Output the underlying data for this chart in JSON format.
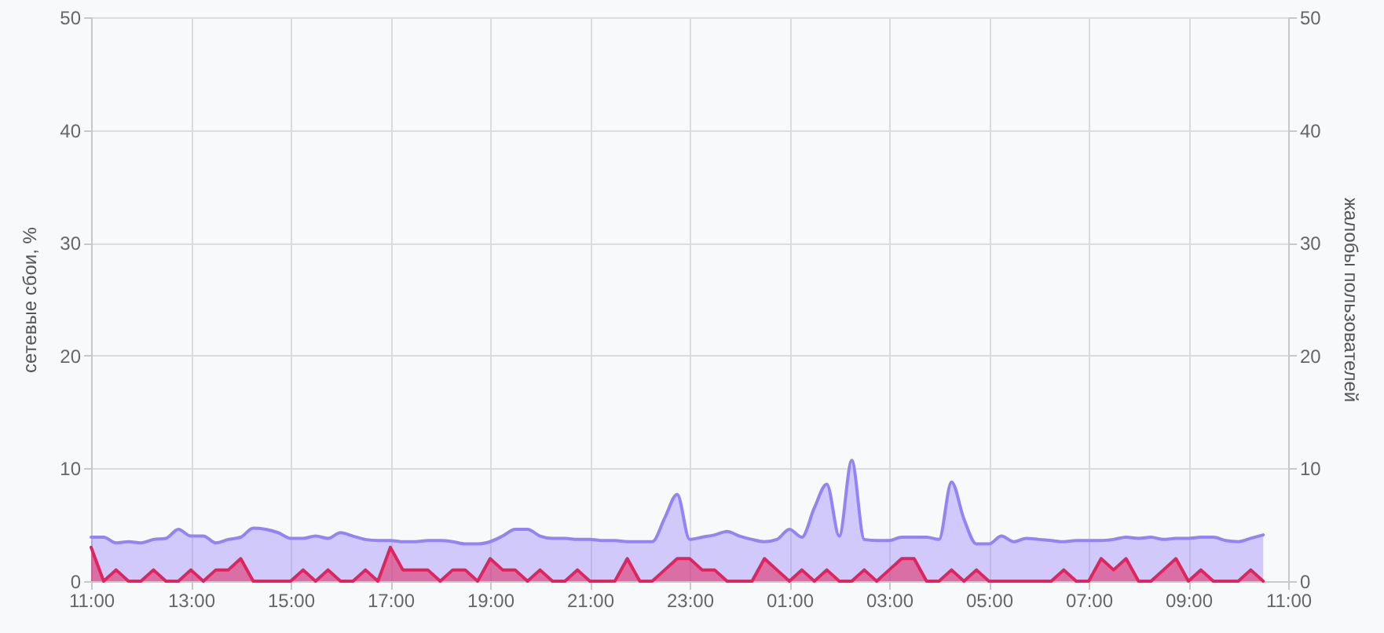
{
  "chart_data": {
    "type": "area",
    "ylabel": "сетевые сбои, %",
    "y2label": "жалобы пользователей",
    "categories": [
      "11:00",
      null,
      null,
      null,
      null,
      null,
      null,
      null,
      "13:00",
      null,
      null,
      null,
      null,
      null,
      null,
      null,
      "15:00",
      null,
      null,
      null,
      null,
      null,
      null,
      null,
      "17:00",
      null,
      null,
      null,
      null,
      null,
      null,
      null,
      "19:00",
      null,
      null,
      null,
      null,
      null,
      null,
      null,
      "21:00",
      null,
      null,
      null,
      null,
      null,
      null,
      null,
      "23:00",
      null,
      null,
      null,
      null,
      null,
      null,
      null,
      "01:00",
      null,
      null,
      null,
      null,
      null,
      null,
      null,
      "03:00",
      null,
      null,
      null,
      null,
      null,
      null,
      null,
      "05:00",
      null,
      null,
      null,
      null,
      null,
      null,
      null,
      "07:00",
      null,
      null,
      null,
      null,
      null,
      null,
      null,
      "09:00",
      null,
      null,
      null,
      null,
      null,
      null,
      null,
      "11:00"
    ],
    "ylim": [
      0,
      50
    ],
    "yticks": [
      0,
      10,
      20,
      30,
      40,
      50
    ],
    "y2lim": [
      0,
      50
    ],
    "y2ticks": [
      0,
      10,
      20,
      30,
      40,
      50
    ],
    "grid": true,
    "series": [
      {
        "color": "#9482f7",
        "values": [
          3.9,
          3.9,
          3.4,
          3.5,
          3.4,
          3.7,
          3.8,
          4.6,
          4.0,
          4.0,
          3.4,
          3.7,
          3.9,
          4.7,
          4.6,
          4.3,
          3.8,
          3.8,
          4.0,
          3.8,
          4.3,
          4.0,
          3.7,
          3.6,
          3.6,
          3.5,
          3.5,
          3.6,
          3.6,
          3.5,
          3.3,
          3.3,
          3.5,
          4.0,
          4.6,
          4.6,
          4.0,
          3.8,
          3.8,
          3.7,
          3.7,
          3.6,
          3.6,
          3.5,
          3.5,
          3.5,
          5.6,
          7.7,
          3.7,
          3.9,
          4.1,
          4.4,
          4.0,
          3.7,
          3.5,
          3.7,
          4.6,
          3.9,
          6.5,
          8.6,
          4.0,
          10.7,
          3.7,
          3.6,
          3.6,
          3.9,
          3.9,
          3.9,
          3.7,
          8.8,
          5.5,
          3.3,
          3.3,
          4.0,
          3.5,
          3.8,
          3.7,
          3.6,
          3.5,
          3.6,
          3.6,
          3.6,
          3.7,
          3.9,
          3.8,
          3.9,
          3.7,
          3.8,
          3.8,
          3.9,
          3.9,
          3.6,
          3.5,
          3.8,
          4.1,
          null,
          null
        ]
      },
      {
        "color": "#e0245e",
        "axis": "y2",
        "values": [
          3,
          0,
          1,
          0,
          0,
          1,
          0,
          0,
          1,
          0,
          1,
          1,
          2,
          0,
          0,
          0,
          0,
          1,
          0,
          1,
          0,
          0,
          1,
          0,
          3,
          1,
          1,
          1,
          0,
          1,
          1,
          0,
          2,
          1,
          1,
          0,
          1,
          0,
          0,
          1,
          0,
          0,
          0,
          2,
          0,
          0,
          1,
          2,
          2,
          1,
          1,
          0,
          0,
          0,
          2,
          1,
          0,
          1,
          0,
          1,
          0,
          0,
          1,
          0,
          1,
          2,
          2,
          0,
          0,
          1,
          0,
          1,
          0,
          0,
          0,
          0,
          0,
          0,
          1,
          0,
          0,
          2,
          1,
          2,
          0,
          0,
          1,
          2,
          0,
          1,
          0,
          0,
          0,
          1,
          0,
          null,
          null
        ]
      }
    ]
  }
}
